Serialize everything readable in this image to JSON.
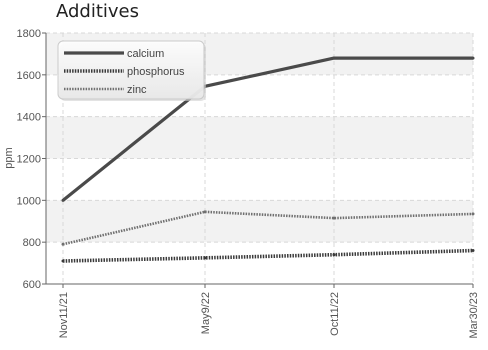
{
  "chart_data": {
    "type": "line",
    "title": "Additives",
    "xlabel": "",
    "ylabel": "ppm",
    "categories": [
      "Nov11/21",
      "May9/22",
      "Oct11/22",
      "Mar30/23"
    ],
    "ylim": [
      600,
      1800
    ],
    "yticks": [
      600,
      800,
      1000,
      1200,
      1400,
      1600,
      1800
    ],
    "grid": true,
    "legend_position": "top-left",
    "series": [
      {
        "name": "calcium",
        "values": [
          1000,
          1545,
          1680,
          1680
        ],
        "color": "#4a4a4a",
        "style": "solid"
      },
      {
        "name": "phosphorus",
        "values": [
          710,
          725,
          740,
          760
        ],
        "color": "#3a3a3a",
        "style": "dotted-thick"
      },
      {
        "name": "zinc",
        "values": [
          790,
          945,
          915,
          935
        ],
        "color": "#707070",
        "style": "dotted"
      }
    ]
  }
}
